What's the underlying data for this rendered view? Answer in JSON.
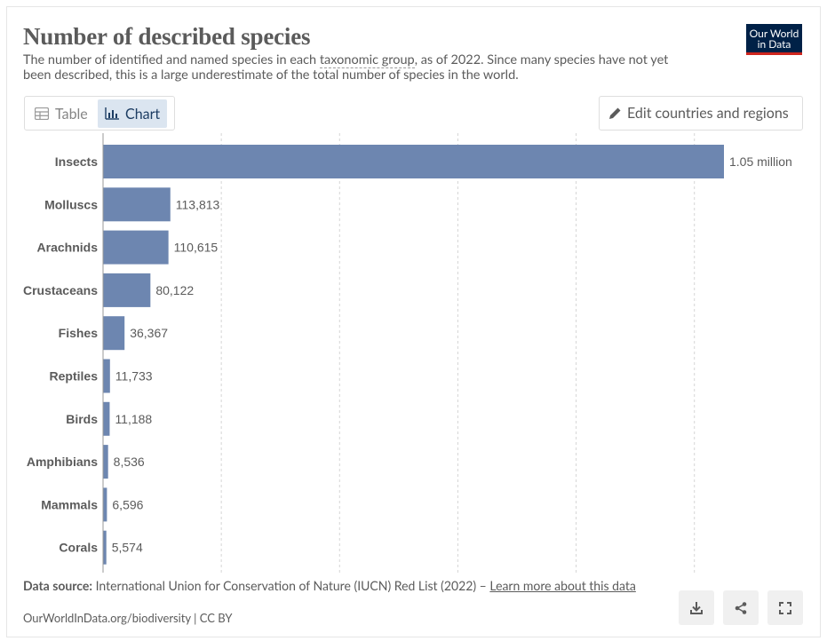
{
  "header": {
    "title": "Number of described species",
    "subtitle_before": "The number of identified and named species in each ",
    "subtitle_term": "taxonomic group",
    "subtitle_after": ", as of 2022. Since many species have not yet been described, this is a large underestimate of the total number of species in the world.",
    "logo_line1": "Our World",
    "logo_line2": "in Data"
  },
  "controls": {
    "tab_table": "Table",
    "tab_chart": "Chart",
    "edit_label": "Edit countries and regions"
  },
  "chart_data": {
    "type": "bar",
    "orientation": "horizontal",
    "categories": [
      "Insects",
      "Molluscs",
      "Arachnids",
      "Crustaceans",
      "Fishes",
      "Reptiles",
      "Birds",
      "Amphibians",
      "Mammals",
      "Corals"
    ],
    "values": [
      1050000,
      113813,
      110615,
      80122,
      36367,
      11733,
      11188,
      8536,
      6596,
      5574
    ],
    "value_labels": [
      "1.05 million",
      "113,813",
      "110,615",
      "80,122",
      "36,367",
      "11,733",
      "11,188",
      "8,536",
      "6,596",
      "5,574"
    ],
    "xlim": [
      0,
      1050000
    ],
    "gridlines": [
      200000,
      400000,
      600000,
      800000,
      1000000
    ],
    "grid": true,
    "bar_color": "#6d86b0"
  },
  "footer": {
    "source_label": "Data source:",
    "source_text": " International Union for Conservation of Nature (IUCN) Red List (2022) – ",
    "learn_more": "Learn more about this data",
    "url_license": "OurWorldInData.org/biodiversity | CC BY"
  },
  "actions": {
    "download_icon": "download-icon",
    "share_icon": "share-icon",
    "fullscreen_icon": "fullscreen-icon"
  }
}
